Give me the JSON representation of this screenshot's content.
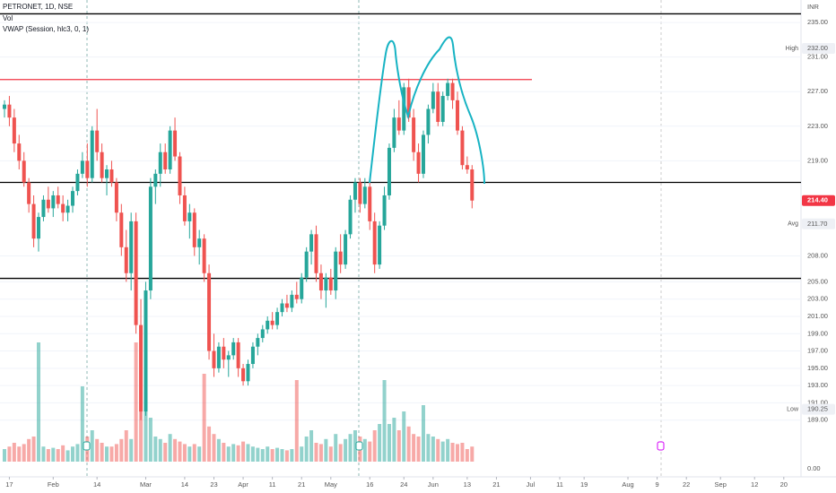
{
  "chart_data": {
    "type": "candlestick",
    "title": "PETRONET, 1D, NSE",
    "indicators": [
      "Vol",
      "VWAP (Session, hlc3, 0, 1)"
    ],
    "currency": "INR",
    "open": [
      225,
      225.5,
      224,
      221,
      219,
      216.5,
      214,
      210,
      212.5,
      214.5,
      213.5,
      215,
      214,
      213,
      213.8,
      215.5,
      217.5,
      219,
      217,
      222.5,
      220,
      217,
      218,
      216.5,
      213,
      209,
      206,
      212,
      200,
      190,
      204,
      216,
      217.5,
      220,
      218,
      222.5,
      219.5,
      215,
      212,
      213,
      209,
      210,
      206,
      197,
      195,
      197.5,
      196,
      196.5,
      198,
      195,
      193.5,
      195.5,
      197.5,
      198.5,
      199.5,
      200.5,
      200,
      201.5,
      202.5,
      202,
      203.5,
      203,
      205.5,
      208.5,
      210.5,
      206,
      204,
      205.5,
      204,
      208.5,
      207,
      210.5,
      214.5,
      216.5,
      214,
      216,
      212,
      207,
      211.5,
      215,
      220.5,
      224,
      222.5,
      227.5,
      224,
      220,
      217.5,
      222,
      225,
      227,
      223.5,
      226.5,
      228,
      226,
      222.5,
      218.5,
      218
    ],
    "high": [
      226,
      226.5,
      225,
      222,
      220,
      217,
      215,
      213,
      215,
      216,
      215.5,
      216,
      215,
      214.5,
      216,
      218,
      220,
      221,
      223,
      225,
      221,
      218.5,
      219,
      217,
      214,
      211,
      213,
      213,
      203,
      205,
      217,
      218,
      221,
      221,
      223,
      224,
      220,
      216,
      214,
      213.5,
      211,
      210.5,
      207,
      199,
      198,
      198.5,
      197,
      198.5,
      198.5,
      195.5,
      196,
      198,
      199,
      200,
      201,
      201.5,
      202,
      203,
      203.5,
      204,
      205,
      206,
      209,
      211,
      211.5,
      207,
      206,
      206.5,
      209,
      210.5,
      211,
      215,
      217,
      217,
      217,
      216.5,
      213,
      212,
      216,
      221,
      225,
      226,
      228,
      228.5,
      225,
      221,
      222.5,
      225.5,
      228,
      228,
      227,
      228.5,
      228.5,
      227,
      223,
      219.5,
      218.5
    ],
    "low": [
      224,
      223,
      220,
      218,
      216,
      213,
      209,
      208.5,
      212,
      213,
      212.5,
      213.5,
      212,
      212,
      213,
      215,
      217,
      216,
      216.5,
      219,
      216.5,
      215,
      216,
      212,
      208,
      205,
      204,
      199,
      189,
      189.5,
      203,
      214,
      216,
      217.5,
      217.5,
      219,
      214,
      211.5,
      210,
      208,
      207,
      205,
      196,
      194,
      194.5,
      195,
      194,
      196,
      194,
      193,
      193,
      195,
      196.5,
      198,
      199,
      199.5,
      199.5,
      201,
      201.5,
      201.5,
      202.5,
      202.5,
      205,
      207,
      205,
      203,
      202,
      203.5,
      203,
      206,
      206.5,
      210,
      213,
      213,
      213.5,
      211,
      206,
      206.5,
      211,
      214.5,
      220,
      222,
      222,
      223.5,
      219,
      216.5,
      217,
      221,
      224.5,
      223,
      223,
      226,
      225,
      222,
      218,
      217.5,
      213.5
    ],
    "close": [
      225.5,
      224,
      221,
      219,
      216.5,
      214,
      210,
      212.5,
      214.5,
      213.5,
      215,
      214,
      213,
      213.8,
      215.5,
      217.5,
      219,
      217,
      222.5,
      220,
      217,
      218,
      216.5,
      213,
      209,
      206,
      212,
      200,
      190,
      204,
      216,
      217.5,
      220,
      218,
      222.5,
      219.5,
      215,
      212,
      213,
      209,
      210,
      206,
      197,
      195,
      197.5,
      196,
      196.5,
      198,
      195,
      193.5,
      195.5,
      197.5,
      198.5,
      199.5,
      200.5,
      200,
      201.5,
      202.5,
      202,
      203.5,
      203,
      205.5,
      208.5,
      210.5,
      206,
      204,
      205.5,
      204,
      208.5,
      207,
      210.5,
      214.5,
      216.5,
      214,
      216,
      212,
      207,
      211.5,
      215,
      220.5,
      224,
      222.5,
      227.5,
      224,
      220,
      217.5,
      222,
      225,
      227,
      223.5,
      226.5,
      228,
      226,
      222.5,
      218.5,
      218,
      214.4
    ],
    "volume": [
      10,
      12,
      15,
      12,
      14,
      18,
      20,
      95,
      12,
      10,
      11,
      10,
      13,
      9,
      12,
      14,
      60,
      20,
      25,
      18,
      15,
      12,
      12,
      14,
      18,
      25,
      18,
      95,
      40,
      55,
      35,
      20,
      18,
      15,
      22,
      18,
      16,
      14,
      12,
      14,
      12,
      70,
      28,
      22,
      18,
      15,
      12,
      14,
      13,
      16,
      14,
      12,
      11,
      10,
      12,
      10,
      11,
      10,
      9,
      10,
      65,
      12,
      20,
      25,
      15,
      14,
      18,
      12,
      22,
      14,
      18,
      22,
      25,
      20,
      18,
      16,
      25,
      30,
      65,
      30,
      35,
      25,
      40,
      28,
      22,
      20,
      45,
      22,
      20,
      18,
      16,
      18,
      15,
      14,
      15,
      10,
      12
    ],
    "up_color": "#26a69a",
    "down_color": "#ef5350",
    "ylim": [
      184.2,
      237.6
    ],
    "yticks": [
      {
        "value": 235,
        "label": "235.00"
      },
      {
        "value": 231,
        "label": "231.00"
      },
      {
        "value": 227,
        "label": "227.00"
      },
      {
        "value": 223,
        "label": "223.00"
      },
      {
        "value": 219,
        "label": "219.00"
      },
      {
        "value": 208,
        "label": "208.00"
      },
      {
        "value": 205,
        "label": "205.00"
      },
      {
        "value": 203,
        "label": "203.00"
      },
      {
        "value": 201,
        "label": "201.00"
      },
      {
        "value": 199,
        "label": "199.00"
      },
      {
        "value": 197,
        "label": "197.00"
      },
      {
        "value": 195,
        "label": "195.00"
      },
      {
        "value": 193,
        "label": "193.00"
      },
      {
        "value": 191,
        "label": "191.00"
      },
      {
        "value": 189,
        "label": "189.00"
      }
    ],
    "y2lim": [
      0,
      100
    ],
    "y2ticks": [
      {
        "value": 0,
        "label": "0.00"
      }
    ],
    "xlim": [
      -1,
      164
    ],
    "xticks": [
      {
        "value": 1,
        "label": "17"
      },
      {
        "value": 10,
        "label": "Feb"
      },
      {
        "value": 19,
        "label": "14"
      },
      {
        "value": 29,
        "label": "Mar"
      },
      {
        "value": 37,
        "label": "14"
      },
      {
        "value": 43,
        "label": "23"
      },
      {
        "value": 49,
        "label": "Apr"
      },
      {
        "value": 55,
        "label": "11"
      },
      {
        "value": 61,
        "label": "21"
      },
      {
        "value": 67,
        "label": "May"
      },
      {
        "value": 75,
        "label": "16"
      },
      {
        "value": 82,
        "label": "24"
      },
      {
        "value": 88,
        "label": "Jun"
      },
      {
        "value": 95,
        "label": "13"
      },
      {
        "value": 101,
        "label": "21"
      },
      {
        "value": 108,
        "label": "Jul"
      },
      {
        "value": 114,
        "label": "11"
      },
      {
        "value": 119,
        "label": "19"
      },
      {
        "value": 128,
        "label": "Aug"
      },
      {
        "value": 134,
        "label": "9"
      },
      {
        "value": 140,
        "label": "22"
      },
      {
        "value": 147,
        "label": "Sep"
      },
      {
        "value": 154,
        "label": "12"
      },
      {
        "value": 160,
        "label": "20"
      }
    ],
    "levels": [
      {
        "value": 236,
        "color": "#000000"
      },
      {
        "value": 228.4,
        "color": "#f23645"
      },
      {
        "value": 216.5,
        "color": "#000000"
      },
      {
        "value": 205.4,
        "color": "#000000"
      }
    ],
    "badges": [
      {
        "name": "High",
        "value": 232,
        "label": "232.00"
      },
      {
        "name": "Avg",
        "value": 211.7,
        "label": "211.70"
      },
      {
        "name": "Low",
        "value": 190.25,
        "label": "190.25"
      },
      {
        "value": 214.4,
        "label": "214.40",
        "color": "#f23645"
      }
    ],
    "grid": true
  }
}
